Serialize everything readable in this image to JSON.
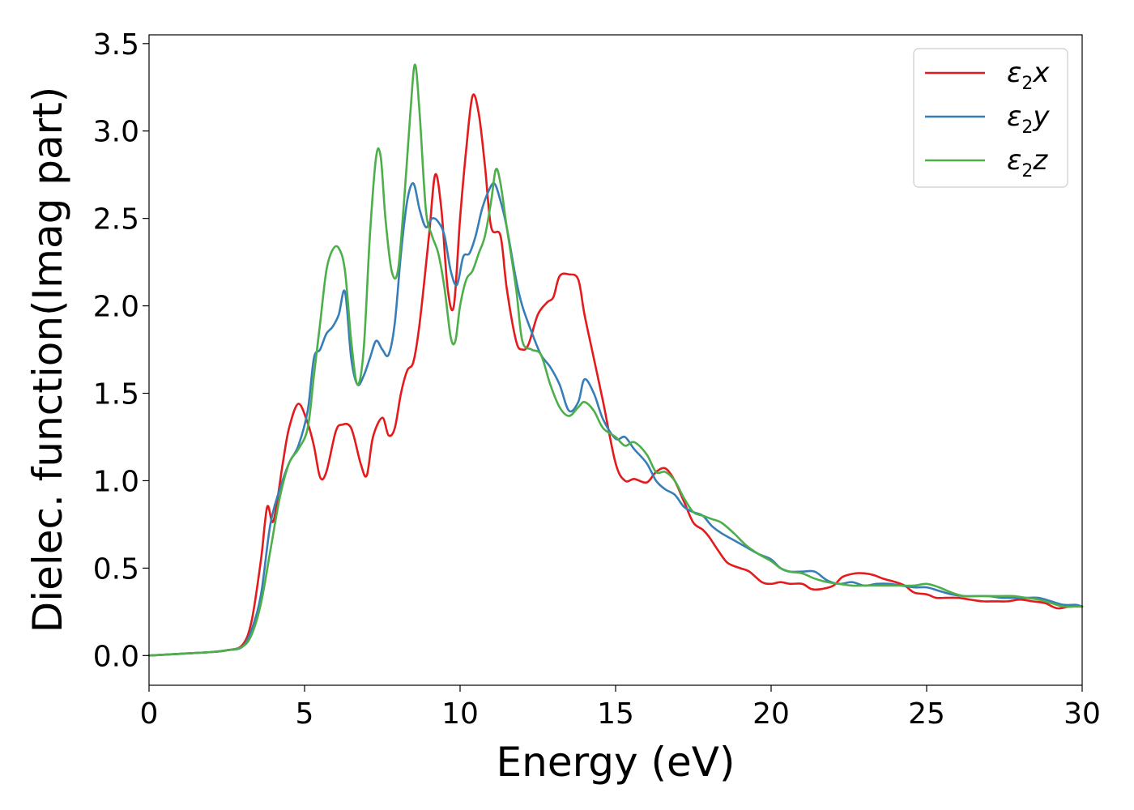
{
  "chart_data": {
    "type": "line",
    "title": "",
    "xlabel": "Energy (eV)",
    "ylabel": "Dielec. function(Imag part)",
    "xlim": [
      0,
      30
    ],
    "ylim": [
      -0.17,
      3.55
    ],
    "xticks": [
      0,
      5,
      10,
      15,
      20,
      25,
      30
    ],
    "xtick_labels": [
      "0",
      "5",
      "10",
      "15",
      "20",
      "25",
      "30"
    ],
    "yticks": [
      0.0,
      0.5,
      1.0,
      1.5,
      2.0,
      2.5,
      3.0,
      3.5
    ],
    "ytick_labels": [
      "0.0",
      "0.5",
      "1.0",
      "1.5",
      "2.0",
      "2.5",
      "3.0",
      "3.5"
    ],
    "grid": false,
    "legend_position": "top-right",
    "series": [
      {
        "legend": {
          "base": "ε",
          "sub": "2",
          "suffix": "x"
        },
        "color": "#e41a1c",
        "x": [
          0,
          1,
          2,
          2.5,
          3,
          3.3,
          3.6,
          3.8,
          4.0,
          4.3,
          4.5,
          4.8,
          5.1,
          5.3,
          5.5,
          5.7,
          6.0,
          6.2,
          6.5,
          6.8,
          7.0,
          7.2,
          7.5,
          7.7,
          7.9,
          8.1,
          8.3,
          8.5,
          8.7,
          9.0,
          9.2,
          9.4,
          9.6,
          9.8,
          10.0,
          10.2,
          10.4,
          10.6,
          10.8,
          11.0,
          11.3,
          11.5,
          11.8,
          12.0,
          12.2,
          12.5,
          12.8,
          13.0,
          13.2,
          13.5,
          13.8,
          14.0,
          14.3,
          14.6,
          15.0,
          15.3,
          15.6,
          16.0,
          16.3,
          16.6,
          16.9,
          17.2,
          17.5,
          17.8,
          18.0,
          18.3,
          18.6,
          19.0,
          19.3,
          19.7,
          20.0,
          20.3,
          20.6,
          21.0,
          21.3,
          21.6,
          22.0,
          22.3,
          22.7,
          23.0,
          23.3,
          23.6,
          24.0,
          24.3,
          24.6,
          25.0,
          25.3,
          25.6,
          26.0,
          26.4,
          26.8,
          27.2,
          27.6,
          28.0,
          28.4,
          28.8,
          29.2,
          29.6,
          30.0
        ],
        "y": [
          0.0,
          0.01,
          0.02,
          0.03,
          0.06,
          0.2,
          0.55,
          0.85,
          0.77,
          1.1,
          1.3,
          1.44,
          1.33,
          1.2,
          1.02,
          1.05,
          1.28,
          1.32,
          1.3,
          1.1,
          1.03,
          1.25,
          1.36,
          1.26,
          1.3,
          1.5,
          1.63,
          1.68,
          1.9,
          2.4,
          2.75,
          2.55,
          2.1,
          2.0,
          2.5,
          2.9,
          3.2,
          3.1,
          2.8,
          2.45,
          2.4,
          2.1,
          1.8,
          1.75,
          1.78,
          1.95,
          2.02,
          2.05,
          2.17,
          2.18,
          2.15,
          1.95,
          1.7,
          1.45,
          1.1,
          1.0,
          1.01,
          0.99,
          1.05,
          1.07,
          1.0,
          0.88,
          0.76,
          0.72,
          0.68,
          0.6,
          0.53,
          0.5,
          0.48,
          0.42,
          0.41,
          0.42,
          0.41,
          0.41,
          0.38,
          0.38,
          0.4,
          0.45,
          0.47,
          0.47,
          0.46,
          0.44,
          0.42,
          0.4,
          0.36,
          0.35,
          0.33,
          0.33,
          0.33,
          0.32,
          0.31,
          0.31,
          0.31,
          0.32,
          0.31,
          0.3,
          0.27,
          0.28,
          0.28
        ]
      },
      {
        "legend": {
          "base": "ε",
          "sub": "2",
          "suffix": "y"
        },
        "color": "#377eb8",
        "x": [
          0,
          1,
          2,
          2.5,
          3,
          3.3,
          3.6,
          3.9,
          4.2,
          4.5,
          4.8,
          5.1,
          5.3,
          5.5,
          5.7,
          5.9,
          6.1,
          6.3,
          6.5,
          6.7,
          6.9,
          7.1,
          7.3,
          7.5,
          7.7,
          7.9,
          8.1,
          8.3,
          8.5,
          8.7,
          8.9,
          9.1,
          9.3,
          9.5,
          9.7,
          9.9,
          10.1,
          10.3,
          10.5,
          10.7,
          10.9,
          11.1,
          11.3,
          11.5,
          11.8,
          12.0,
          12.3,
          12.6,
          12.9,
          13.2,
          13.5,
          13.8,
          14.0,
          14.3,
          14.6,
          15.0,
          15.3,
          15.6,
          16.0,
          16.3,
          16.6,
          16.9,
          17.2,
          17.5,
          17.8,
          18.1,
          18.4,
          18.8,
          19.2,
          19.6,
          20.0,
          20.3,
          20.6,
          21.0,
          21.4,
          21.8,
          22.2,
          22.6,
          23.0,
          23.4,
          23.8,
          24.2,
          24.6,
          25.0,
          25.4,
          25.8,
          26.2,
          26.6,
          27.0,
          27.4,
          27.8,
          28.2,
          28.6,
          29.0,
          29.4,
          29.8,
          30.0
        ],
        "y": [
          0.0,
          0.01,
          0.02,
          0.03,
          0.05,
          0.15,
          0.35,
          0.75,
          0.95,
          1.1,
          1.2,
          1.4,
          1.7,
          1.75,
          1.84,
          1.88,
          1.95,
          2.08,
          1.7,
          1.55,
          1.6,
          1.7,
          1.8,
          1.75,
          1.72,
          1.9,
          2.3,
          2.6,
          2.7,
          2.55,
          2.45,
          2.5,
          2.48,
          2.4,
          2.2,
          2.12,
          2.28,
          2.3,
          2.4,
          2.55,
          2.65,
          2.7,
          2.6,
          2.45,
          2.15,
          2.0,
          1.85,
          1.72,
          1.65,
          1.55,
          1.4,
          1.45,
          1.58,
          1.5,
          1.35,
          1.24,
          1.25,
          1.18,
          1.1,
          1.0,
          0.95,
          0.92,
          0.85,
          0.82,
          0.8,
          0.74,
          0.7,
          0.66,
          0.62,
          0.58,
          0.55,
          0.5,
          0.48,
          0.48,
          0.48,
          0.43,
          0.41,
          0.42,
          0.4,
          0.41,
          0.41,
          0.4,
          0.39,
          0.39,
          0.37,
          0.35,
          0.34,
          0.34,
          0.34,
          0.33,
          0.33,
          0.33,
          0.33,
          0.31,
          0.29,
          0.29,
          0.28
        ]
      },
      {
        "legend": {
          "base": "ε",
          "sub": "2",
          "suffix": "z"
        },
        "color": "#4daf4a",
        "x": [
          0,
          1,
          2,
          2.5,
          3,
          3.3,
          3.6,
          3.9,
          4.2,
          4.5,
          4.8,
          5.1,
          5.3,
          5.5,
          5.7,
          5.9,
          6.1,
          6.3,
          6.5,
          6.7,
          6.9,
          7.1,
          7.3,
          7.45,
          7.6,
          7.8,
          8.0,
          8.2,
          8.4,
          8.55,
          8.7,
          8.9,
          9.1,
          9.3,
          9.5,
          9.7,
          9.85,
          10.0,
          10.2,
          10.4,
          10.6,
          10.8,
          11.0,
          11.15,
          11.3,
          11.5,
          11.8,
          12.0,
          12.3,
          12.6,
          12.9,
          13.2,
          13.5,
          13.8,
          14.0,
          14.3,
          14.6,
          15.0,
          15.3,
          15.6,
          16.0,
          16.3,
          16.6,
          16.9,
          17.2,
          17.5,
          17.8,
          18.1,
          18.4,
          18.8,
          19.2,
          19.6,
          20.0,
          20.3,
          20.6,
          21.0,
          21.4,
          21.8,
          22.2,
          22.6,
          23.0,
          23.4,
          23.8,
          24.2,
          24.6,
          25.0,
          25.4,
          25.8,
          26.2,
          26.6,
          27.0,
          27.4,
          27.8,
          28.2,
          28.6,
          29.0,
          29.4,
          29.8,
          30.0
        ],
        "y": [
          0.0,
          0.01,
          0.02,
          0.03,
          0.05,
          0.12,
          0.3,
          0.6,
          0.9,
          1.1,
          1.18,
          1.3,
          1.6,
          1.9,
          2.2,
          2.32,
          2.33,
          2.2,
          1.8,
          1.55,
          1.75,
          2.4,
          2.85,
          2.85,
          2.5,
          2.2,
          2.2,
          2.6,
          3.1,
          3.38,
          3.1,
          2.55,
          2.4,
          2.3,
          2.1,
          1.82,
          1.8,
          2.0,
          2.15,
          2.2,
          2.3,
          2.4,
          2.6,
          2.78,
          2.7,
          2.45,
          2.1,
          1.8,
          1.75,
          1.72,
          1.55,
          1.42,
          1.37,
          1.42,
          1.45,
          1.4,
          1.3,
          1.25,
          1.2,
          1.22,
          1.15,
          1.05,
          1.05,
          1.0,
          0.9,
          0.82,
          0.8,
          0.78,
          0.76,
          0.7,
          0.63,
          0.58,
          0.54,
          0.5,
          0.48,
          0.47,
          0.44,
          0.42,
          0.41,
          0.4,
          0.4,
          0.4,
          0.4,
          0.4,
          0.4,
          0.41,
          0.39,
          0.36,
          0.34,
          0.34,
          0.34,
          0.34,
          0.34,
          0.33,
          0.32,
          0.3,
          0.28,
          0.28,
          0.28
        ]
      }
    ]
  }
}
